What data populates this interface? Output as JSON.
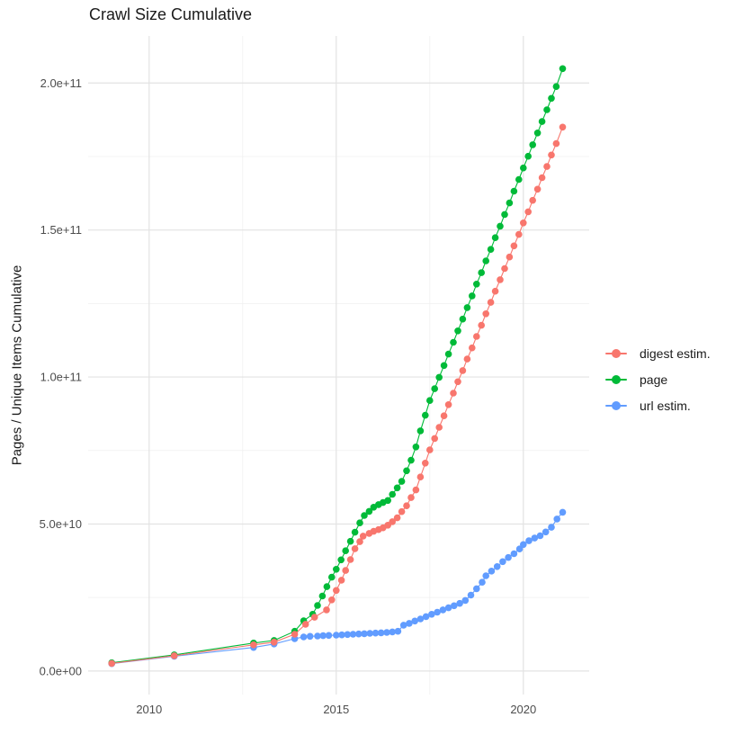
{
  "chart_data": {
    "type": "scatter",
    "title": "Crawl Size Cumulative",
    "xlabel": "",
    "ylabel": "Pages / Unique Items Cumulative",
    "value_unit": 1000000000,
    "unit_note": "point values are in billions (1e9) of pages / unique items",
    "xlim": [
      2008.37,
      2021.76
    ],
    "ylim": [
      -8,
      216
    ],
    "x_major": [
      2010,
      2015,
      2020
    ],
    "x_minor": [
      2012.5,
      2017.5
    ],
    "y_major": [
      0,
      50,
      100,
      150,
      200
    ],
    "y_minor": [
      25,
      75,
      125,
      175
    ],
    "x_tick_labels": [
      "2010",
      "2015",
      "2020"
    ],
    "y_tick_labels": [
      "0.0e+00",
      "5.0e+10",
      "1.0e+11",
      "1.5e+11",
      "2.0e+11"
    ],
    "grid": {
      "major_color": "#e3e3e3",
      "minor_color": "#f0f0f0",
      "grid_on": true
    },
    "legend_position": "right",
    "series": [
      {
        "name": "digest estim.",
        "color": "#F8766D",
        "points": [
          [
            2009.0,
            2.6
          ],
          [
            2010.67,
            5.2
          ],
          [
            2012.79,
            8.9
          ],
          [
            2013.34,
            9.8
          ],
          [
            2013.89,
            12.5
          ],
          [
            2014.18,
            15.9
          ],
          [
            2014.42,
            18.3
          ],
          [
            2014.74,
            20.8
          ],
          [
            2014.88,
            24.2
          ],
          [
            2015.0,
            27.4
          ],
          [
            2015.14,
            30.9
          ],
          [
            2015.25,
            34.2
          ],
          [
            2015.38,
            37.9
          ],
          [
            2015.5,
            41.6
          ],
          [
            2015.63,
            44.0
          ],
          [
            2015.72,
            45.9
          ],
          [
            2015.88,
            46.8
          ],
          [
            2016.0,
            47.5
          ],
          [
            2016.13,
            48.1
          ],
          [
            2016.25,
            48.7
          ],
          [
            2016.38,
            49.6
          ],
          [
            2016.5,
            50.8
          ],
          [
            2016.63,
            52.1
          ],
          [
            2016.75,
            54.2
          ],
          [
            2016.88,
            56.2
          ],
          [
            2017.0,
            59.0
          ],
          [
            2017.13,
            61.6
          ],
          [
            2017.25,
            66.0
          ],
          [
            2017.38,
            70.7
          ],
          [
            2017.5,
            75.2
          ],
          [
            2017.63,
            79.1
          ],
          [
            2017.75,
            82.9
          ],
          [
            2017.88,
            86.8
          ],
          [
            2018.0,
            90.6
          ],
          [
            2018.13,
            94.5
          ],
          [
            2018.25,
            98.4
          ],
          [
            2018.38,
            102.2
          ],
          [
            2018.5,
            106.1
          ],
          [
            2018.63,
            109.9
          ],
          [
            2018.75,
            113.8
          ],
          [
            2018.88,
            117.6
          ],
          [
            2019.0,
            121.5
          ],
          [
            2019.13,
            125.4
          ],
          [
            2019.25,
            129.2
          ],
          [
            2019.38,
            133.1
          ],
          [
            2019.5,
            136.9
          ],
          [
            2019.63,
            140.8
          ],
          [
            2019.75,
            144.6
          ],
          [
            2019.88,
            148.5
          ],
          [
            2020.0,
            152.4
          ],
          [
            2020.13,
            156.2
          ],
          [
            2020.25,
            160.1
          ],
          [
            2020.38,
            163.9
          ],
          [
            2020.5,
            167.8
          ],
          [
            2020.63,
            171.6
          ],
          [
            2020.75,
            175.5
          ],
          [
            2020.88,
            179.4
          ],
          [
            2021.05,
            185.0
          ]
        ]
      },
      {
        "name": "page",
        "color": "#00BA38",
        "points": [
          [
            2009.0,
            2.8
          ],
          [
            2010.67,
            5.5
          ],
          [
            2012.79,
            9.5
          ],
          [
            2013.34,
            10.4
          ],
          [
            2013.89,
            13.5
          ],
          [
            2014.13,
            17.1
          ],
          [
            2014.37,
            19.3
          ],
          [
            2014.5,
            22.3
          ],
          [
            2014.63,
            25.5
          ],
          [
            2014.75,
            28.7
          ],
          [
            2014.88,
            31.9
          ],
          [
            2015.0,
            34.6
          ],
          [
            2015.13,
            37.8
          ],
          [
            2015.25,
            40.9
          ],
          [
            2015.38,
            44.1
          ],
          [
            2015.5,
            47.2
          ],
          [
            2015.63,
            50.4
          ],
          [
            2015.75,
            52.9
          ],
          [
            2015.88,
            54.3
          ],
          [
            2016.0,
            55.7
          ],
          [
            2016.13,
            56.6
          ],
          [
            2016.25,
            57.3
          ],
          [
            2016.38,
            58.0
          ],
          [
            2016.5,
            60.1
          ],
          [
            2016.63,
            62.3
          ],
          [
            2016.75,
            64.5
          ],
          [
            2016.88,
            68.1
          ],
          [
            2017.0,
            71.7
          ],
          [
            2017.13,
            76.2
          ],
          [
            2017.25,
            81.7
          ],
          [
            2017.38,
            87.0
          ],
          [
            2017.5,
            92.0
          ],
          [
            2017.63,
            96.0
          ],
          [
            2017.75,
            99.9
          ],
          [
            2017.88,
            103.9
          ],
          [
            2018.0,
            107.8
          ],
          [
            2018.13,
            111.8
          ],
          [
            2018.25,
            115.7
          ],
          [
            2018.38,
            119.7
          ],
          [
            2018.5,
            123.6
          ],
          [
            2018.63,
            127.6
          ],
          [
            2018.75,
            131.6
          ],
          [
            2018.88,
            135.5
          ],
          [
            2019.0,
            139.5
          ],
          [
            2019.13,
            143.4
          ],
          [
            2019.25,
            147.4
          ],
          [
            2019.38,
            151.3
          ],
          [
            2019.5,
            155.3
          ],
          [
            2019.63,
            159.2
          ],
          [
            2019.75,
            163.2
          ],
          [
            2019.88,
            167.2
          ],
          [
            2020.0,
            171.1
          ],
          [
            2020.13,
            175.1
          ],
          [
            2020.25,
            179.0
          ],
          [
            2020.38,
            183.0
          ],
          [
            2020.5,
            186.9
          ],
          [
            2020.63,
            190.9
          ],
          [
            2020.75,
            194.8
          ],
          [
            2020.88,
            198.8
          ],
          [
            2021.05,
            204.9
          ]
        ]
      },
      {
        "name": "url estim.",
        "color": "#619CFF",
        "points": [
          [
            2009.0,
            2.5
          ],
          [
            2010.67,
            5.0
          ],
          [
            2012.79,
            8.0
          ],
          [
            2013.34,
            9.2
          ],
          [
            2013.89,
            11.0
          ],
          [
            2014.13,
            11.6
          ],
          [
            2014.3,
            11.8
          ],
          [
            2014.5,
            11.9
          ],
          [
            2014.65,
            12.0
          ],
          [
            2014.8,
            12.1
          ],
          [
            2015.0,
            12.2
          ],
          [
            2015.15,
            12.3
          ],
          [
            2015.3,
            12.4
          ],
          [
            2015.45,
            12.5
          ],
          [
            2015.6,
            12.6
          ],
          [
            2015.75,
            12.7
          ],
          [
            2015.9,
            12.8
          ],
          [
            2016.05,
            12.9
          ],
          [
            2016.2,
            13.0
          ],
          [
            2016.35,
            13.1
          ],
          [
            2016.5,
            13.3
          ],
          [
            2016.65,
            13.5
          ],
          [
            2016.8,
            15.6
          ],
          [
            2016.95,
            16.2
          ],
          [
            2017.1,
            17.0
          ],
          [
            2017.25,
            17.7
          ],
          [
            2017.4,
            18.5
          ],
          [
            2017.55,
            19.3
          ],
          [
            2017.7,
            20.0
          ],
          [
            2017.85,
            20.8
          ],
          [
            2018.0,
            21.5
          ],
          [
            2018.15,
            22.2
          ],
          [
            2018.3,
            23.0
          ],
          [
            2018.45,
            24.0
          ],
          [
            2018.6,
            25.8
          ],
          [
            2018.75,
            28.0
          ],
          [
            2018.9,
            30.2
          ],
          [
            2019.0,
            32.4
          ],
          [
            2019.15,
            34.0
          ],
          [
            2019.3,
            35.5
          ],
          [
            2019.45,
            37.2
          ],
          [
            2019.6,
            38.6
          ],
          [
            2019.75,
            39.9
          ],
          [
            2019.9,
            41.5
          ],
          [
            2020.0,
            43.0
          ],
          [
            2020.15,
            44.3
          ],
          [
            2020.3,
            45.2
          ],
          [
            2020.45,
            46.0
          ],
          [
            2020.6,
            47.3
          ],
          [
            2020.75,
            48.9
          ],
          [
            2020.9,
            51.7
          ],
          [
            2021.05,
            54.0
          ]
        ]
      }
    ]
  }
}
